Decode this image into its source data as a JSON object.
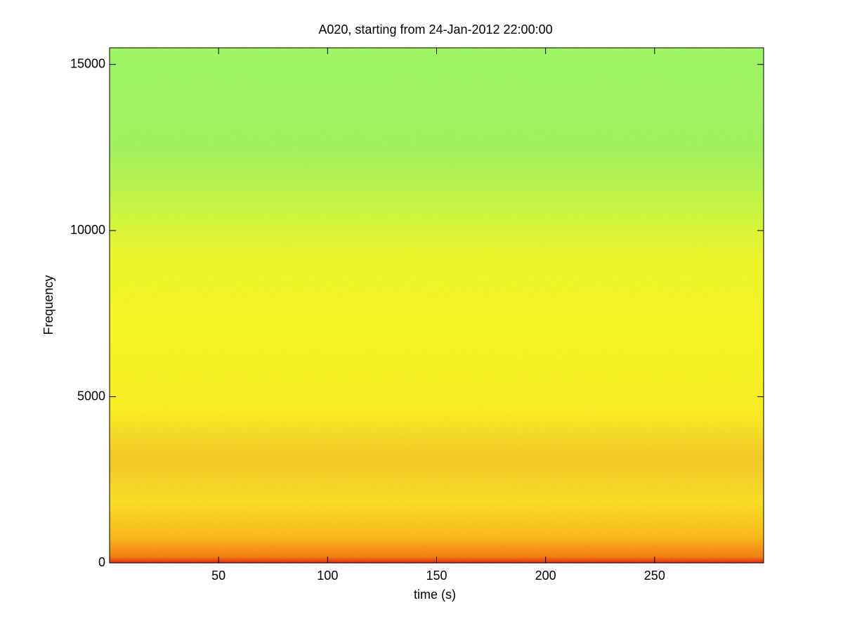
{
  "chart_data": {
    "type": "spectrogram",
    "title": "A020, starting from 24-Jan-2012 22:00:00",
    "x_label": "time (s)",
    "y_label": "Frequency",
    "xlim": [
      0,
      300
    ],
    "xticks": [
      50,
      100,
      150,
      200,
      250
    ],
    "ylim": [
      0,
      15500
    ],
    "yticks": [
      0,
      5000,
      10000,
      15000
    ]
  }
}
